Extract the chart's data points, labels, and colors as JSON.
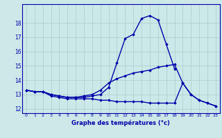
{
  "xlabel": "Graphe des températures (°c)",
  "x": [
    0,
    1,
    2,
    3,
    4,
    5,
    6,
    7,
    8,
    9,
    10,
    11,
    12,
    13,
    14,
    15,
    16,
    17,
    18,
    19,
    20,
    21,
    22,
    23
  ],
  "line1": [
    13.3,
    13.2,
    13.2,
    13.0,
    12.9,
    12.8,
    12.8,
    12.8,
    12.9,
    13.0,
    13.5,
    15.2,
    16.9,
    17.2,
    18.3,
    18.5,
    18.2,
    16.5,
    14.8,
    null,
    null,
    null,
    null,
    null
  ],
  "line2": [
    13.3,
    13.2,
    13.2,
    13.0,
    12.9,
    12.8,
    12.8,
    12.9,
    13.0,
    13.3,
    13.8,
    14.1,
    14.3,
    14.5,
    14.6,
    14.7,
    14.9,
    15.0,
    15.1,
    13.8,
    13.0,
    12.6,
    12.4,
    12.2
  ],
  "line3": [
    13.3,
    13.2,
    13.2,
    12.9,
    12.8,
    12.7,
    12.7,
    12.7,
    12.7,
    12.6,
    12.6,
    12.5,
    12.5,
    12.5,
    12.5,
    12.4,
    12.4,
    12.4,
    12.4,
    13.8,
    13.0,
    12.6,
    12.4,
    12.2
  ],
  "line_color": "#0000aa",
  "bg_color": "#cce8e8",
  "grid_color": "#aacccc",
  "ylim": [
    11.7,
    19.3
  ],
  "yticks": [
    12,
    13,
    14,
    15,
    16,
    17,
    18
  ],
  "marker": "D",
  "markersize": 1.8,
  "linewidth": 1.0
}
